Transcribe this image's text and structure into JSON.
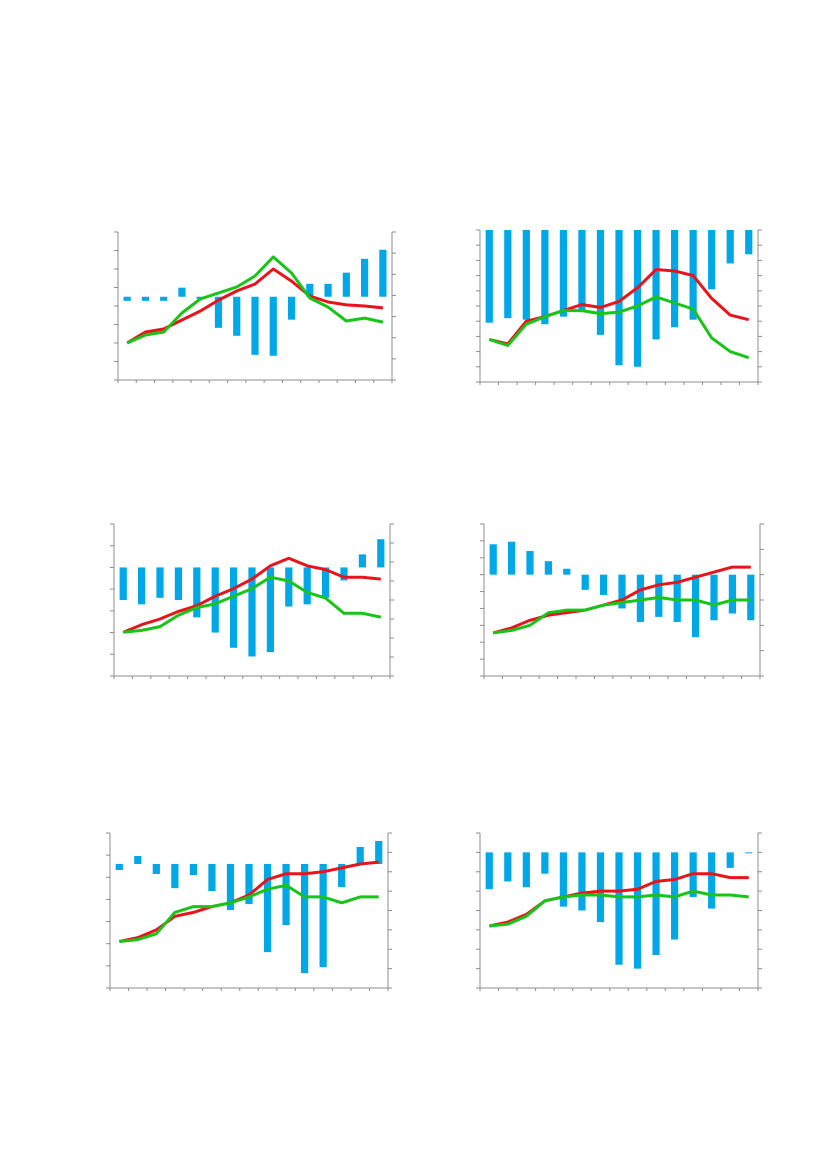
{
  "chart_data": [
    {
      "type": "combo",
      "categories": [
        null,
        null,
        null,
        null,
        null,
        null,
        null,
        null,
        null,
        null,
        null,
        null,
        null,
        null,
        null
      ],
      "ylim": [
        -45,
        35
      ],
      "yticks": [
        -45,
        -35,
        -25,
        -15,
        -5,
        5,
        15,
        25,
        35
      ],
      "y2lim": [
        0,
        7
      ],
      "y2ticks": [
        0,
        1,
        2,
        3,
        4,
        5,
        6,
        7
      ],
      "series": [
        {
          "type": "bar",
          "color": "#00a8e8",
          "axis": "y",
          "values": [
            -2.2,
            -2.2,
            -2.2,
            4.9,
            -1.1,
            -16.8,
            -21.1,
            -31.4,
            -31.9,
            -12.4,
            7.0,
            7.0,
            13.0,
            20.5,
            25.4
          ]
        },
        {
          "type": "line",
          "color": "#e8141c",
          "axis": "y2",
          "values": [
            1.75,
            2.27,
            2.41,
            2.84,
            3.26,
            3.78,
            4.21,
            4.54,
            5.25,
            4.68,
            3.97,
            3.69,
            3.55,
            3.5,
            3.41
          ]
        },
        {
          "type": "line",
          "color": "#19c419",
          "axis": "y2",
          "values": [
            1.75,
            2.13,
            2.27,
            3.17,
            3.83,
            4.12,
            4.4,
            4.92,
            5.82,
            5.06,
            3.88,
            3.45,
            2.79,
            2.93,
            2.74
          ]
        }
      ]
    },
    {
      "type": "combo",
      "categories": [
        null,
        null,
        null,
        null,
        null,
        null,
        null,
        null,
        null,
        null,
        null,
        null,
        null,
        null,
        null
      ],
      "ylim": [
        -10,
        0
      ],
      "yticks": [
        -10,
        -9,
        -8,
        -7,
        -6,
        -5,
        -4,
        -3,
        -2,
        -1,
        0
      ],
      "y2lim": [
        0,
        10
      ],
      "y2ticks": [
        0,
        1,
        2,
        3,
        4,
        5,
        6,
        7,
        8,
        9,
        10
      ],
      "series": [
        {
          "type": "bar",
          "color": "#00a8e8",
          "axis": "y",
          "values": [
            -6.1,
            -5.8,
            -5.9,
            -6.2,
            -5.7,
            -5.4,
            -6.9,
            -8.9,
            -9.0,
            -7.2,
            -6.4,
            -5.9,
            -3.9,
            -2.2,
            -1.6
          ]
        },
        {
          "type": "line",
          "color": "#e8141c",
          "axis": "y2",
          "values": [
            2.8,
            2.5,
            4.0,
            4.3,
            4.7,
            5.1,
            4.9,
            5.3,
            6.2,
            7.4,
            7.3,
            7.0,
            5.5,
            4.4,
            4.1
          ]
        },
        {
          "type": "line",
          "color": "#19c419",
          "axis": "y2",
          "values": [
            2.8,
            2.4,
            3.8,
            4.3,
            4.7,
            4.7,
            4.5,
            4.6,
            5.0,
            5.6,
            5.2,
            4.8,
            2.9,
            2.0,
            1.6
          ]
        }
      ]
    },
    {
      "type": "combo",
      "categories": [
        null,
        null,
        null,
        null,
        null,
        null,
        null,
        null,
        null,
        null,
        null,
        null,
        null,
        null,
        null
      ],
      "ylim": [
        -5,
        2
      ],
      "yticks": [
        -5,
        -4,
        -3,
        -2,
        -1,
        0,
        1,
        2
      ],
      "y2lim": [
        0,
        8
      ],
      "y2ticks": [
        0,
        1,
        2,
        3,
        4,
        5,
        6,
        7,
        8
      ],
      "series": [
        {
          "type": "bar",
          "color": "#00a8e8",
          "axis": "y",
          "values": [
            -1.5,
            -1.7,
            -1.4,
            -1.5,
            -2.3,
            -3.0,
            -3.7,
            -4.1,
            -3.9,
            -1.8,
            -1.7,
            -1.4,
            -0.6,
            0.6,
            1.3
          ]
        },
        {
          "type": "line",
          "color": "#e8141c",
          "axis": "y2",
          "values": [
            2.3,
            2.7,
            3.0,
            3.4,
            3.7,
            4.2,
            4.6,
            5.1,
            5.8,
            6.2,
            5.8,
            5.6,
            5.2,
            5.2,
            5.1
          ]
        },
        {
          "type": "line",
          "color": "#19c419",
          "axis": "y2",
          "values": [
            2.3,
            2.4,
            2.6,
            3.2,
            3.6,
            3.8,
            4.2,
            4.6,
            5.2,
            5.0,
            4.4,
            4.1,
            3.3,
            3.3,
            3.1
          ]
        }
      ]
    },
    {
      "type": "combo",
      "categories": [
        null,
        null,
        null,
        null,
        null,
        null,
        null,
        null,
        null,
        null,
        null,
        null,
        null,
        null,
        null
      ],
      "ylim": [
        -6,
        3
      ],
      "yticks": [
        -6,
        -5,
        -4,
        -3,
        -2,
        -1,
        0,
        1,
        2,
        3
      ],
      "y2lim": [
        0,
        6
      ],
      "y2ticks": [
        0,
        1,
        2,
        3,
        4,
        5,
        6
      ],
      "series": [
        {
          "type": "bar",
          "color": "#00a8e8",
          "axis": "y",
          "values": [
            1.8,
            1.95,
            1.4,
            0.8,
            0.35,
            -0.9,
            -1.2,
            -2.0,
            -2.8,
            -2.5,
            -2.8,
            -3.7,
            -2.7,
            -2.3,
            -2.7
          ]
        },
        {
          "type": "line",
          "color": "#e8141c",
          "axis": "y2",
          "values": [
            1.7,
            1.9,
            2.2,
            2.4,
            2.5,
            2.6,
            2.8,
            3.0,
            3.4,
            3.6,
            3.7,
            3.9,
            4.1,
            4.3,
            4.3
          ]
        },
        {
          "type": "line",
          "color": "#19c419",
          "axis": "y2",
          "values": [
            1.7,
            1.8,
            2.0,
            2.5,
            2.6,
            2.6,
            2.8,
            2.9,
            3.0,
            3.1,
            3.0,
            3.0,
            2.8,
            3.0,
            3.0
          ]
        }
      ]
    },
    {
      "type": "combo",
      "categories": [
        null,
        null,
        null,
        null,
        null,
        null,
        null,
        null,
        null,
        null,
        null,
        null,
        null,
        null,
        null
      ],
      "ylim": [
        -56,
        14
      ],
      "yticks": [
        -56,
        -46,
        -36,
        -26,
        -16,
        -6,
        4,
        14
      ],
      "y2lim": [
        0,
        8
      ],
      "y2ticks": [
        0,
        1,
        2,
        3,
        4,
        5,
        6,
        7,
        8
      ],
      "series": [
        {
          "type": "bar",
          "color": "#00a8e8",
          "axis": "y",
          "values": [
            -2.7,
            3.6,
            -4.5,
            -10.9,
            -5.0,
            -12.2,
            -20.8,
            -18.1,
            -39.8,
            -27.6,
            -49.3,
            -46.6,
            -10.4,
            7.7,
            10.4
          ]
        },
        {
          "type": "line",
          "color": "#e8141c",
          "axis": "y2",
          "values": [
            2.4,
            2.6,
            3.0,
            3.7,
            3.9,
            4.2,
            4.4,
            4.8,
            5.6,
            5.9,
            5.9,
            6.0,
            6.2,
            6.4,
            6.5
          ]
        },
        {
          "type": "line",
          "color": "#19c419",
          "axis": "y2",
          "values": [
            2.4,
            2.5,
            2.8,
            3.9,
            4.2,
            4.2,
            4.4,
            4.7,
            5.1,
            5.3,
            4.7,
            4.7,
            4.4,
            4.7,
            4.7
          ]
        }
      ]
    },
    {
      "type": "combo",
      "categories": [
        null,
        null,
        null,
        null,
        null,
        null,
        null,
        null,
        null,
        null,
        null,
        null,
        null,
        null,
        null
      ],
      "ylim": [
        -7,
        1
      ],
      "yticks": [
        -7,
        -6,
        -5,
        -4,
        -3,
        -2,
        -1,
        0,
        1
      ],
      "y2lim": [
        0,
        8
      ],
      "y2ticks": [
        0,
        1,
        2,
        3,
        4,
        5,
        6,
        7,
        8
      ],
      "series": [
        {
          "type": "bar",
          "color": "#00a8e8",
          "axis": "y",
          "values": [
            -1.9,
            -1.5,
            -1.8,
            -1.1,
            -2.8,
            -3.0,
            -3.6,
            -5.8,
            -6.0,
            -5.3,
            -4.5,
            -2.3,
            -2.9,
            -0.8,
            -0.05
          ]
        },
        {
          "type": "line",
          "color": "#e8141c",
          "axis": "y2",
          "values": [
            3.2,
            3.4,
            3.8,
            4.5,
            4.7,
            4.9,
            5.0,
            5.0,
            5.1,
            5.5,
            5.6,
            5.9,
            5.9,
            5.7,
            5.7
          ]
        },
        {
          "type": "line",
          "color": "#19c419",
          "axis": "y2",
          "values": [
            3.2,
            3.3,
            3.7,
            4.5,
            4.7,
            4.8,
            4.8,
            4.7,
            4.7,
            4.8,
            4.7,
            5.0,
            4.8,
            4.8,
            4.7
          ]
        }
      ]
    }
  ]
}
